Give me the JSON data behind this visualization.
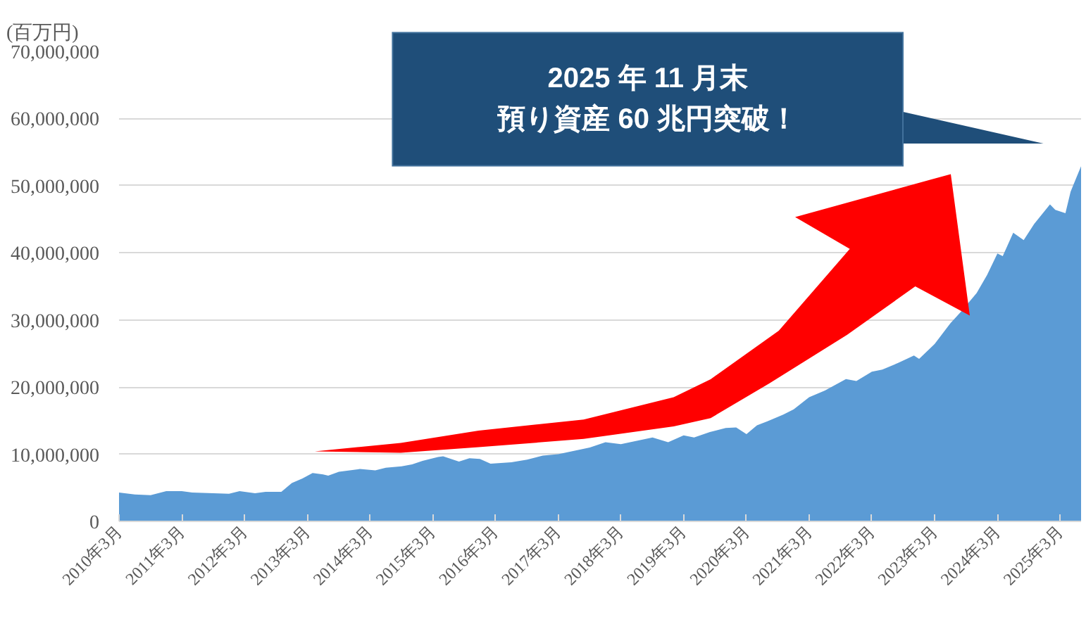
{
  "chart_data": {
    "type": "area",
    "ylabel": "(百万円)",
    "color": "#5b9bd5",
    "grid": "y",
    "x": [
      "2010-03",
      "2010-06",
      "2010-09",
      "2010-12",
      "2011-03",
      "2011-05",
      "2011-09",
      "2011-12",
      "2012-02",
      "2012-05",
      "2012-07",
      "2012-10",
      "2012-12",
      "2013-02",
      "2013-04",
      "2013-06",
      "2013-07",
      "2013-09",
      "2014-01",
      "2014-04",
      "2014-06",
      "2014-09",
      "2014-11",
      "2015-01",
      "2015-04",
      "2015-05",
      "2015-08",
      "2015-10",
      "2015-12",
      "2016-02",
      "2016-06",
      "2016-09",
      "2016-12",
      "2017-03",
      "2017-06",
      "2017-09",
      "2017-12",
      "2018-03",
      "2018-06",
      "2018-09",
      "2018-12",
      "2019-03",
      "2019-05",
      "2019-08",
      "2019-11",
      "2020-01",
      "2020-03",
      "2020-05",
      "2020-07",
      "2020-10",
      "2020-12",
      "2021-03",
      "2021-06",
      "2021-10",
      "2021-12",
      "2022-03",
      "2022-05",
      "2022-08",
      "2022-11",
      "2022-12",
      "2023-03",
      "2023-06",
      "2023-08",
      "2023-11",
      "2024-01",
      "2024-03",
      "2024-04",
      "2024-06",
      "2024-08",
      "2024-10",
      "2025-01",
      "2025-02",
      "2025-04",
      "2025-05",
      "2025-07"
    ],
    "values": [
      4300000,
      4000000,
      3900000,
      4500000,
      4500000,
      4300000,
      4200000,
      4100000,
      4500000,
      4200000,
      4400000,
      4400000,
      5700000,
      6400000,
      7200000,
      7000000,
      6800000,
      7400000,
      7800000,
      7600000,
      8000000,
      8200000,
      8500000,
      9000000,
      9600000,
      9700000,
      8900000,
      9400000,
      9300000,
      8600000,
      8800000,
      9200000,
      9800000,
      10000000,
      10500000,
      11000000,
      11800000,
      11500000,
      12000000,
      12500000,
      11800000,
      12800000,
      12500000,
      13300000,
      13900000,
      14000000,
      13000000,
      14300000,
      14900000,
      15900000,
      16700000,
      18500000,
      19500000,
      21200000,
      20900000,
      22300000,
      22600000,
      23600000,
      24700000,
      24200000,
      26400000,
      29500000,
      31200000,
      34000000,
      36700000,
      39900000,
      39500000,
      43000000,
      41900000,
      44300000,
      47200000,
      46400000,
      45900000,
      49100000,
      52900000
    ],
    "xlim": [
      "2010-03",
      "2025-07"
    ],
    "xticks": [
      {
        "value": "2010-03",
        "label": "2010年3月"
      },
      {
        "value": "2011-03",
        "label": "2011年3月"
      },
      {
        "value": "2012-03",
        "label": "2012年3月"
      },
      {
        "value": "2013-03",
        "label": "2013年3月"
      },
      {
        "value": "2014-03",
        "label": "2014年3月"
      },
      {
        "value": "2015-03",
        "label": "2015年3月"
      },
      {
        "value": "2016-03",
        "label": "2016年3月"
      },
      {
        "value": "2017-03",
        "label": "2017年3月"
      },
      {
        "value": "2018-03",
        "label": "2018年3月"
      },
      {
        "value": "2019-03",
        "label": "2019年3月"
      },
      {
        "value": "2020-03",
        "label": "2020年3月"
      },
      {
        "value": "2021-03",
        "label": "2021年3月"
      },
      {
        "value": "2022-03",
        "label": "2022年3月"
      },
      {
        "value": "2023-03",
        "label": "2023年3月"
      },
      {
        "value": "2024-03",
        "label": "2024年3月"
      },
      {
        "value": "2025-03",
        "label": "2025年3月"
      }
    ],
    "ylim": [
      0,
      70000000
    ],
    "yticks": [
      0,
      {
        "value": 10000000,
        "label": "10,000,000"
      },
      {
        "value": 20000000,
        "label": "20,000,000"
      },
      {
        "value": 30000000,
        "label": "30,000,000"
      },
      {
        "value": 40000000,
        "label": "40,000,000"
      },
      {
        "value": 50000000,
        "label": "50,000,000"
      },
      {
        "value": 60000000,
        "label": "60,000,000"
      },
      {
        "value": 70000000,
        "label": "70,000,000"
      }
    ],
    "annotations": [
      "2025 年 11 月末",
      "預り資産 60 兆円突破！"
    ]
  }
}
